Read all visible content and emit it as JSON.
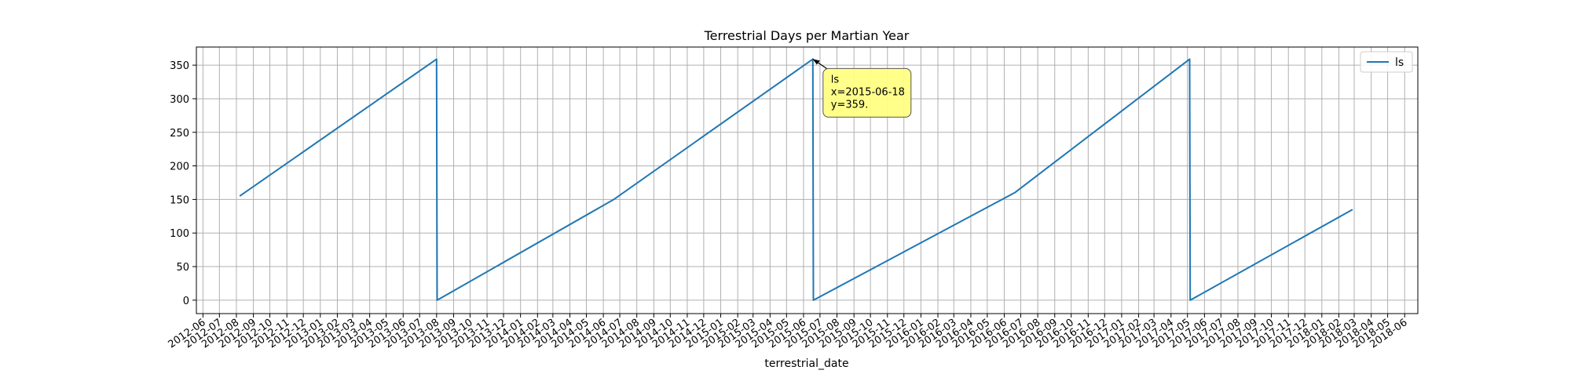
{
  "chart_data": {
    "type": "line",
    "title": "Terrestrial Days per Martian Year",
    "xlabel": "terrestrial_date",
    "ylabel": "",
    "grid": true,
    "legend": {
      "placement": "top-right",
      "entries": [
        "ls"
      ]
    },
    "ylim": [
      -20,
      377
    ],
    "yticks": [
      0,
      50,
      100,
      150,
      200,
      250,
      300,
      350
    ],
    "xlim": [
      "2012-05-20",
      "2018-06-25"
    ],
    "xtick_labels": [
      "2012-06",
      "2012-07",
      "2012-08",
      "2012-09",
      "2012-10",
      "2012-11",
      "2012-12",
      "2013-01",
      "2013-02",
      "2013-03",
      "2013-04",
      "2013-05",
      "2013-06",
      "2013-07",
      "2013-08",
      "2013-09",
      "2013-10",
      "2013-11",
      "2013-12",
      "2014-01",
      "2014-02",
      "2014-03",
      "2014-04",
      "2014-05",
      "2014-06",
      "2014-07",
      "2014-08",
      "2014-09",
      "2014-10",
      "2014-11",
      "2014-12",
      "2015-01",
      "2015-02",
      "2015-03",
      "2015-04",
      "2015-05",
      "2015-06",
      "2015-07",
      "2015-08",
      "2015-09",
      "2015-10",
      "2015-11",
      "2015-12",
      "2016-01",
      "2016-02",
      "2016-03",
      "2016-04",
      "2016-05",
      "2016-06",
      "2016-07",
      "2016-08",
      "2016-09",
      "2016-10",
      "2016-11",
      "2016-12",
      "2017-01",
      "2017-02",
      "2017-03",
      "2017-04",
      "2017-05",
      "2017-06",
      "2017-07",
      "2017-08",
      "2017-09",
      "2017-10",
      "2017-11",
      "2017-12",
      "2018-01",
      "2018-02",
      "2018-03",
      "2018-04",
      "2018-05",
      "2018-06"
    ],
    "series": [
      {
        "name": "ls",
        "color": "#1f77b4",
        "points": [
          [
            "2012-08-07",
            155
          ],
          [
            "2013-08-01",
            359
          ],
          [
            "2013-08-02",
            0
          ],
          [
            "2014-06-20",
            150
          ],
          [
            "2015-06-18",
            359
          ],
          [
            "2015-06-19",
            0
          ],
          [
            "2016-06-20",
            160
          ],
          [
            "2017-05-05",
            359
          ],
          [
            "2017-05-06",
            0
          ],
          [
            "2018-02-26",
            135
          ]
        ]
      }
    ],
    "annotation": {
      "target_x": "2015-06-18",
      "target_y": 359,
      "lines": [
        "ls",
        "x=2015-06-18",
        "y=359."
      ],
      "box_color": "#ffff80"
    }
  }
}
